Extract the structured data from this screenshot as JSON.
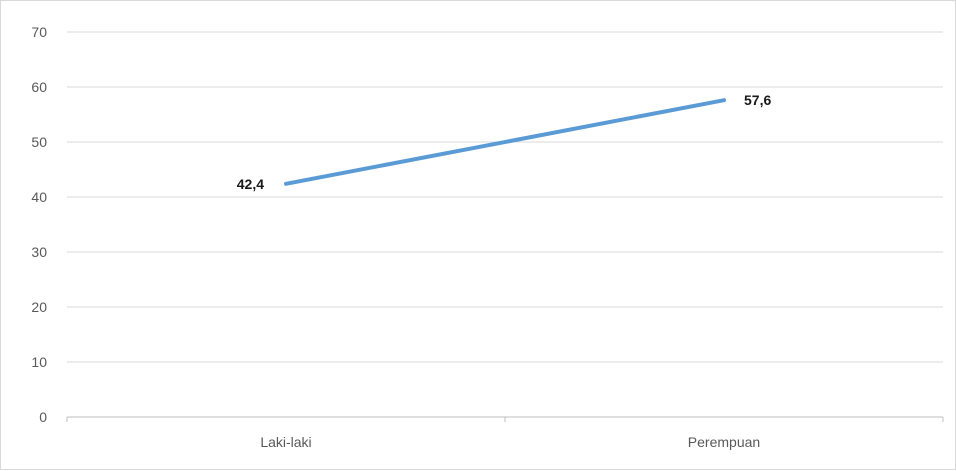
{
  "chart_data": {
    "type": "line",
    "categories": [
      "Laki-laki",
      "Perempuan"
    ],
    "series": [
      {
        "values": [
          42.4,
          57.6
        ],
        "data_labels": [
          "42,4",
          "57,6"
        ],
        "color": "#5b9bd5"
      }
    ],
    "ylim": [
      0,
      70
    ],
    "y_ticks": [
      0,
      10,
      20,
      30,
      40,
      50,
      60,
      70
    ],
    "title": "",
    "xlabel": "",
    "ylabel": "",
    "grid": true,
    "legend": "none"
  },
  "colors": {
    "gridline": "#d9d9d9",
    "axis": "#bfbfbf",
    "tick_text": "#595959",
    "label_text": "#1a1a1a"
  }
}
